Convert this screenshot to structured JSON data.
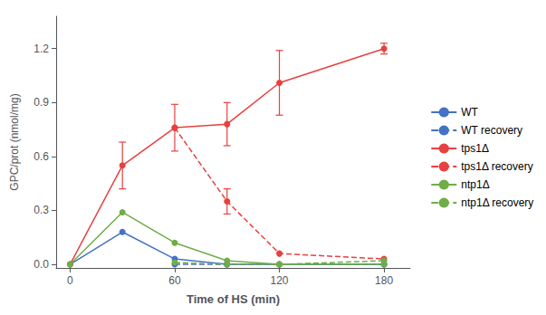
{
  "chart_data": {
    "type": "line",
    "xlabel": "Time of HS (min)",
    "ylabel": "GPC/prot (nmol/mg)",
    "xlim": [
      -8,
      195
    ],
    "xticks": [
      0,
      60,
      120,
      180
    ],
    "ylim": [
      -0.02,
      1.38
    ],
    "yticks": [
      {
        "value": 0.0,
        "label": "0.0"
      },
      0.3,
      0.6,
      0.9,
      1.2
    ],
    "grid": false,
    "legend": "right",
    "series": [
      {
        "name": "WT",
        "color": "#4472C4",
        "line_style": "solid",
        "marker": "circle",
        "x": [
          0,
          30,
          60,
          90,
          120,
          180
        ],
        "values": [
          0.0,
          0.18,
          0.03,
          0.0,
          0.0,
          0.0
        ],
        "errors": [
          0.0,
          0.0,
          0.0,
          0.0,
          0.0,
          0.0
        ]
      },
      {
        "name": "WT recovery",
        "color": "#4472C4",
        "line_style": "dashed",
        "marker": "circle",
        "x": [
          60,
          90,
          120,
          180
        ],
        "values": [
          0.0,
          0.0,
          0.0,
          0.0
        ],
        "errors": [
          0.0,
          0.0,
          0.0,
          0.0
        ]
      },
      {
        "name": "tps1Δ",
        "color": "#E84040",
        "line_style": "solid",
        "marker": "circle",
        "x": [
          0,
          30,
          60,
          90,
          120,
          180
        ],
        "values": [
          0.0,
          0.55,
          0.76,
          0.78,
          1.01,
          1.2
        ],
        "errors": [
          0.0,
          0.13,
          0.13,
          0.12,
          0.18,
          0.03
        ]
      },
      {
        "name": "tps1Δ recovery",
        "color": "#E84040",
        "line_style": "dashed",
        "marker": "circle",
        "x": [
          60,
          90,
          120,
          180
        ],
        "values": [
          0.76,
          0.35,
          0.06,
          0.03
        ],
        "errors": [
          0.0,
          0.07,
          0.0,
          0.0
        ]
      },
      {
        "name": "ntp1Δ",
        "color": "#70AD47",
        "line_style": "solid",
        "marker": "circle",
        "x": [
          0,
          30,
          60,
          90,
          120,
          180
        ],
        "values": [
          0.0,
          0.29,
          0.12,
          0.02,
          0.0,
          0.0
        ],
        "errors": [
          0.0,
          0.0,
          0.0,
          0.0,
          0.0,
          0.0
        ]
      },
      {
        "name": "ntp1Δ recovery",
        "color": "#70AD47",
        "line_style": "dashed",
        "marker": "circle",
        "x": [
          60,
          90,
          120,
          180
        ],
        "values": [
          0.01,
          0.0,
          0.0,
          0.02
        ],
        "errors": [
          0.0,
          0.0,
          0.0,
          0.0
        ]
      }
    ]
  }
}
